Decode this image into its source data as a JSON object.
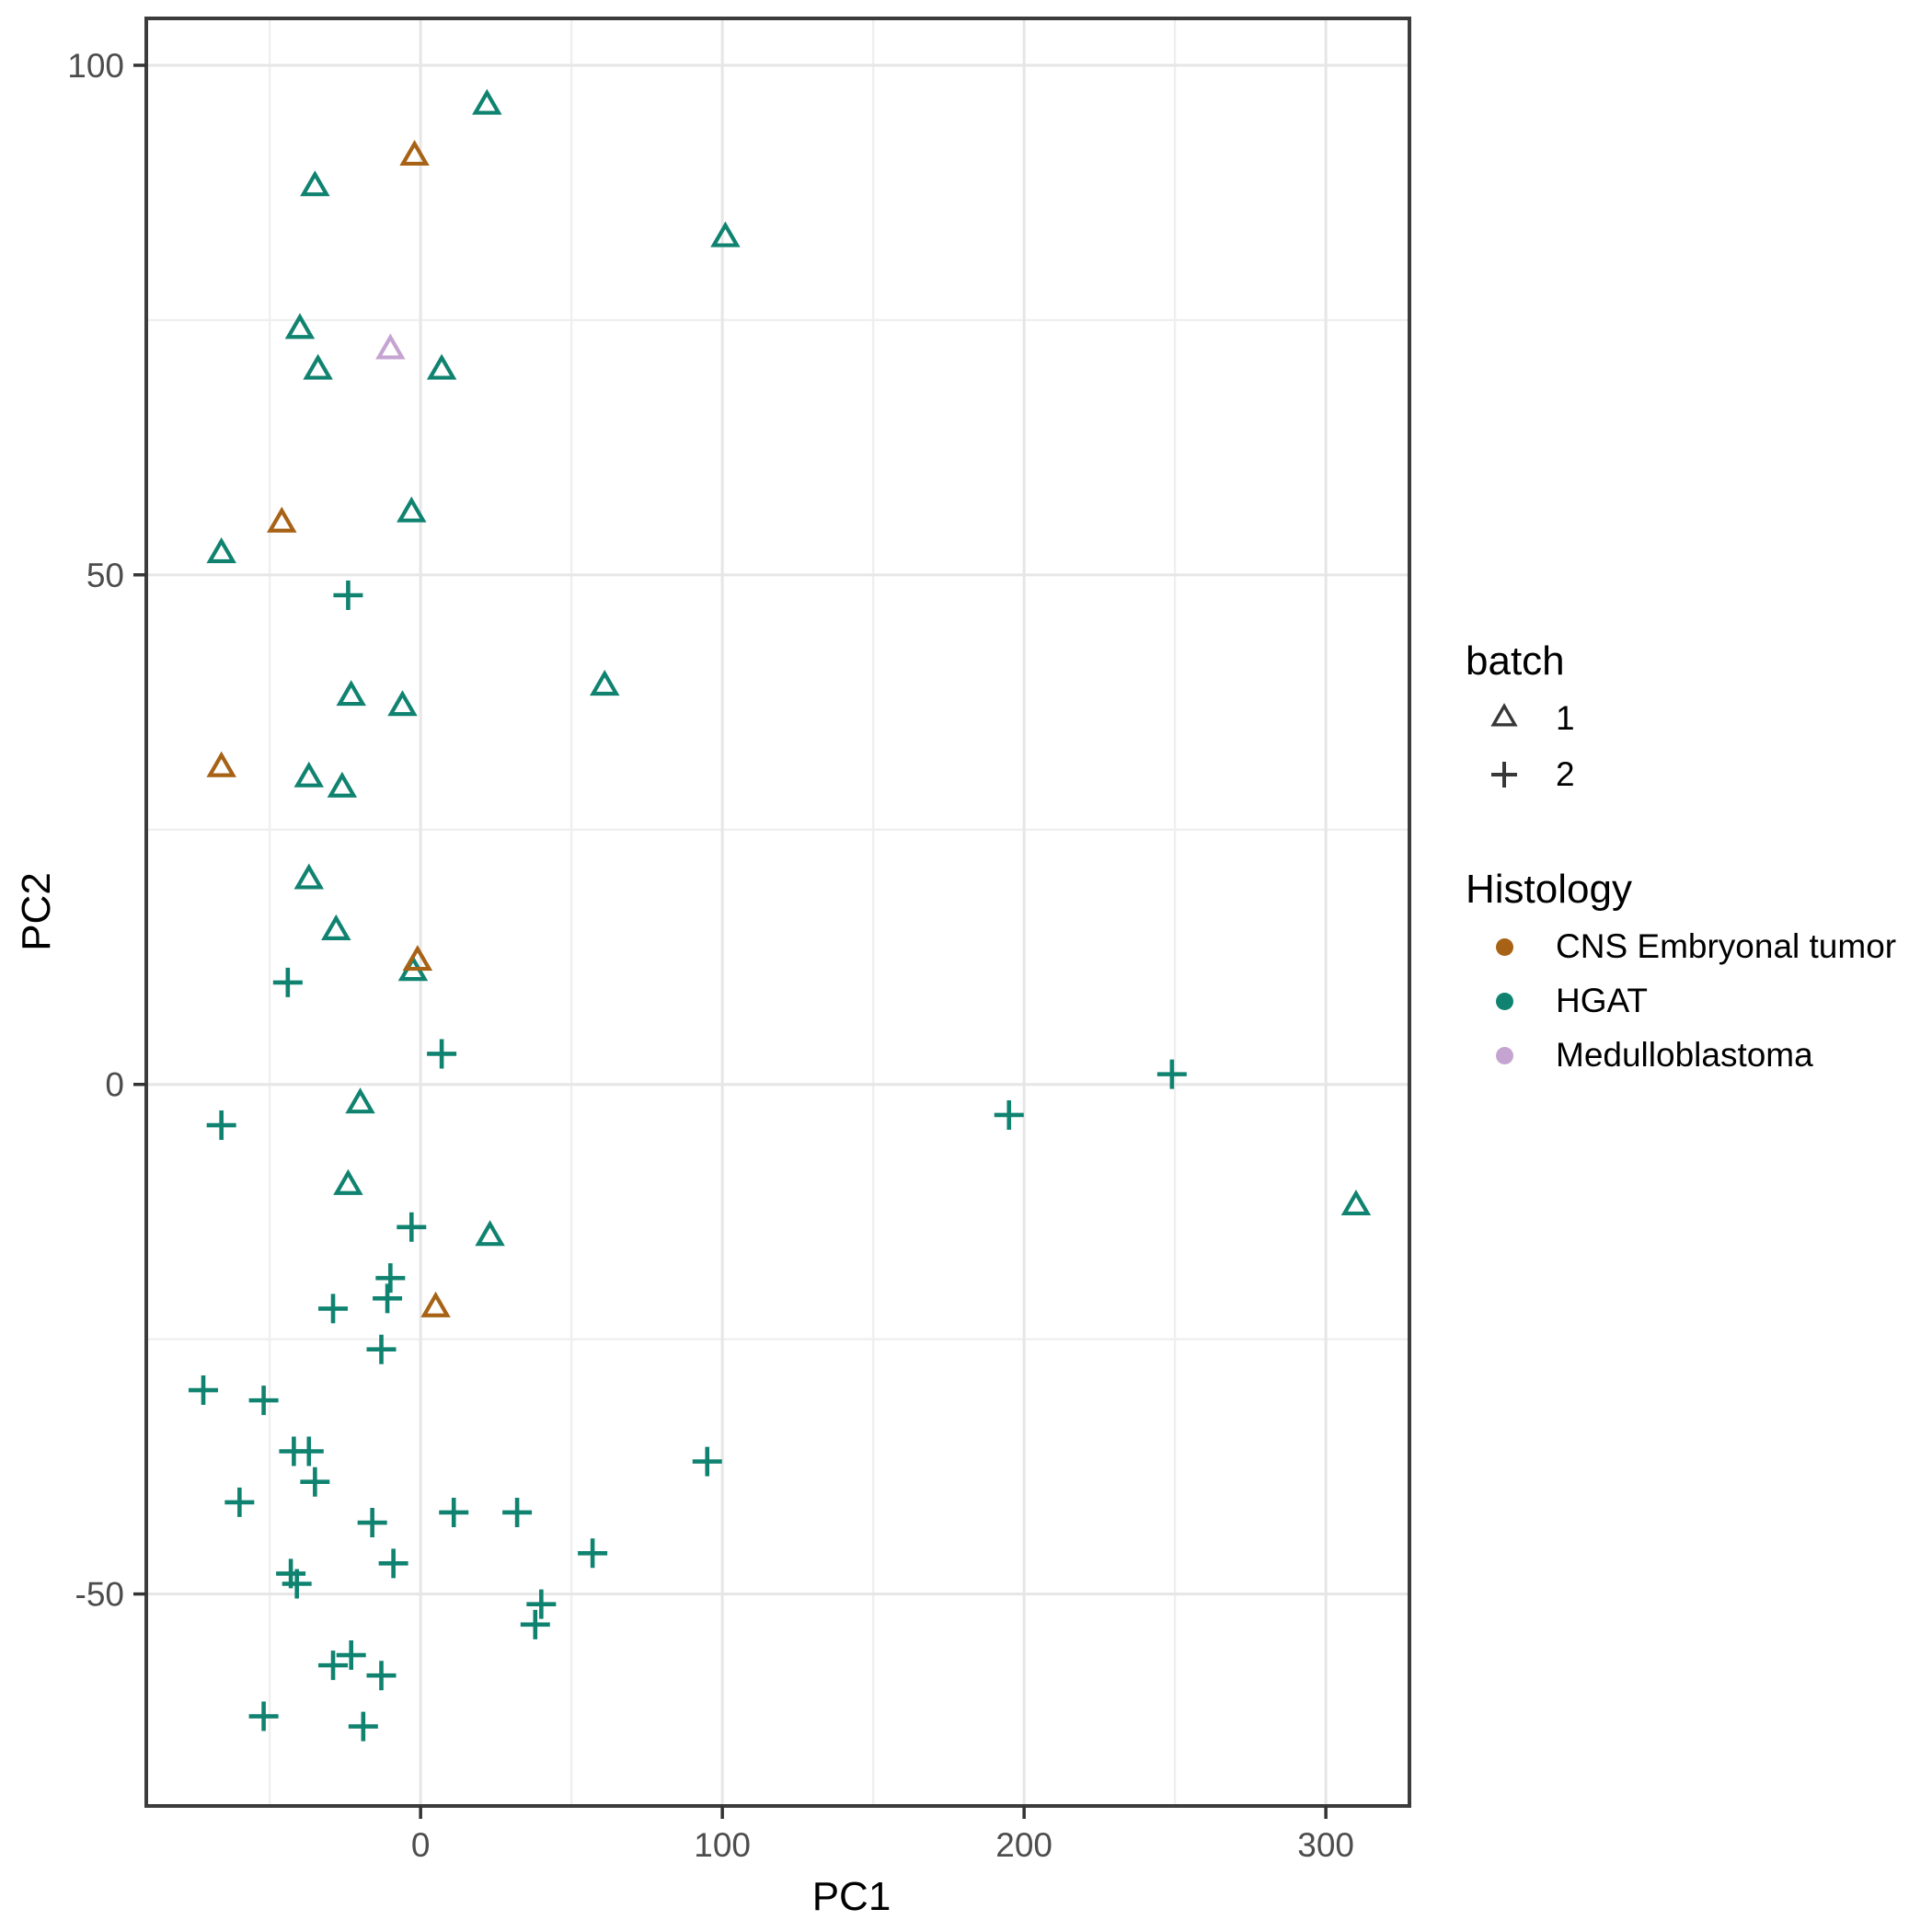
{
  "chart_data": {
    "type": "scatter",
    "title": "",
    "xlabel": "PC1",
    "ylabel": "PC2",
    "grid": true,
    "legend_position": "right",
    "xlim": [
      -90.9,
      327.7
    ],
    "ylim": [
      -70.8,
      104.6
    ],
    "x_ticks": [
      {
        "value": 0,
        "label": "0"
      },
      {
        "value": 100,
        "label": "100"
      },
      {
        "value": 200,
        "label": "200"
      },
      {
        "value": 300,
        "label": "300"
      }
    ],
    "y_ticks": [
      {
        "value": 100,
        "label": "100"
      },
      {
        "value": 50,
        "label": "50"
      },
      {
        "value": 0,
        "label": "0"
      },
      {
        "value": -50,
        "label": "-50"
      }
    ],
    "x_minor_gridlines": [
      -50,
      50,
      150,
      250
    ],
    "y_minor_gridlines": [
      75,
      25,
      -25
    ],
    "series": [
      {
        "name": "HGAT / batch 1",
        "histology": "HGAT",
        "batch": "1",
        "shape": "triangle",
        "color": "#108370",
        "points": [
          [
            22,
            96
          ],
          [
            -35,
            88
          ],
          [
            101,
            83
          ],
          [
            -40,
            74
          ],
          [
            -34,
            70
          ],
          [
            7,
            70
          ],
          [
            -3,
            56
          ],
          [
            -66,
            52
          ],
          [
            61,
            39
          ],
          [
            -23,
            38
          ],
          [
            -6,
            37
          ],
          [
            -37,
            30
          ],
          [
            -26,
            29
          ],
          [
            -37,
            20
          ],
          [
            -28,
            15
          ],
          [
            -2.5,
            11
          ],
          [
            -20,
            -2
          ],
          [
            -24,
            -10
          ],
          [
            23,
            -15
          ],
          [
            310,
            -12
          ]
        ]
      },
      {
        "name": "CNS Embryonal tumor / batch 1",
        "histology": "CNS Embryonal tumor",
        "batch": "1",
        "shape": "triangle",
        "color": "#A76216",
        "points": [
          [
            -2,
            91
          ],
          [
            -46,
            55
          ],
          [
            -66,
            31
          ],
          [
            -1,
            12
          ],
          [
            5,
            -22
          ]
        ]
      },
      {
        "name": "Medulloblastoma / batch 1",
        "histology": "Medulloblastoma",
        "batch": "1",
        "shape": "triangle",
        "color": "#C6A4D1",
        "points": [
          [
            -10,
            72
          ]
        ]
      },
      {
        "name": "HGAT / batch 2",
        "histology": "HGAT",
        "batch": "2",
        "shape": "plus",
        "color": "#108370",
        "points": [
          [
            -24,
            48
          ],
          [
            -44,
            10
          ],
          [
            7,
            3
          ],
          [
            -66,
            -4
          ],
          [
            249,
            1
          ],
          [
            195,
            -3
          ],
          [
            -10,
            -19
          ],
          [
            -11,
            -21
          ],
          [
            -29,
            -22
          ],
          [
            -13,
            -26
          ],
          [
            -3,
            -14
          ],
          [
            -72,
            -30
          ],
          [
            -52,
            -31
          ],
          [
            -42,
            -36
          ],
          [
            -37,
            -36
          ],
          [
            -35,
            -39
          ],
          [
            -60,
            -41
          ],
          [
            -16,
            -43
          ],
          [
            11,
            -42
          ],
          [
            95,
            -37
          ],
          [
            -9,
            -47
          ],
          [
            32,
            -42
          ],
          [
            57,
            -46
          ],
          [
            -43,
            -48
          ],
          [
            -41,
            -49
          ],
          [
            40,
            -51
          ],
          [
            38,
            -53
          ],
          [
            -29,
            -57
          ],
          [
            -23,
            -56
          ],
          [
            -13,
            -58
          ],
          [
            -52,
            -62
          ],
          [
            -19,
            -63
          ]
        ]
      }
    ]
  },
  "legend": {
    "batch": {
      "title": "batch",
      "items": [
        {
          "symbol": "triangle",
          "label": "1"
        },
        {
          "symbol": "plus",
          "label": "2"
        }
      ]
    },
    "histology": {
      "title": "Histology",
      "items": [
        {
          "label": "CNS Embryonal tumor",
          "color": "#A76216"
        },
        {
          "label": "HGAT",
          "color": "#108370"
        },
        {
          "label": "Medulloblastoma",
          "color": "#C6A4D1"
        }
      ]
    }
  },
  "style": {
    "panel_border_color": "#3c3c3c",
    "major_grid_color": "#e6e6e6",
    "minor_grid_color": "#efefef",
    "tick_color": "#333333",
    "tick_label_color": "#4d4d4d",
    "legend_symbol_color": "#383838"
  }
}
